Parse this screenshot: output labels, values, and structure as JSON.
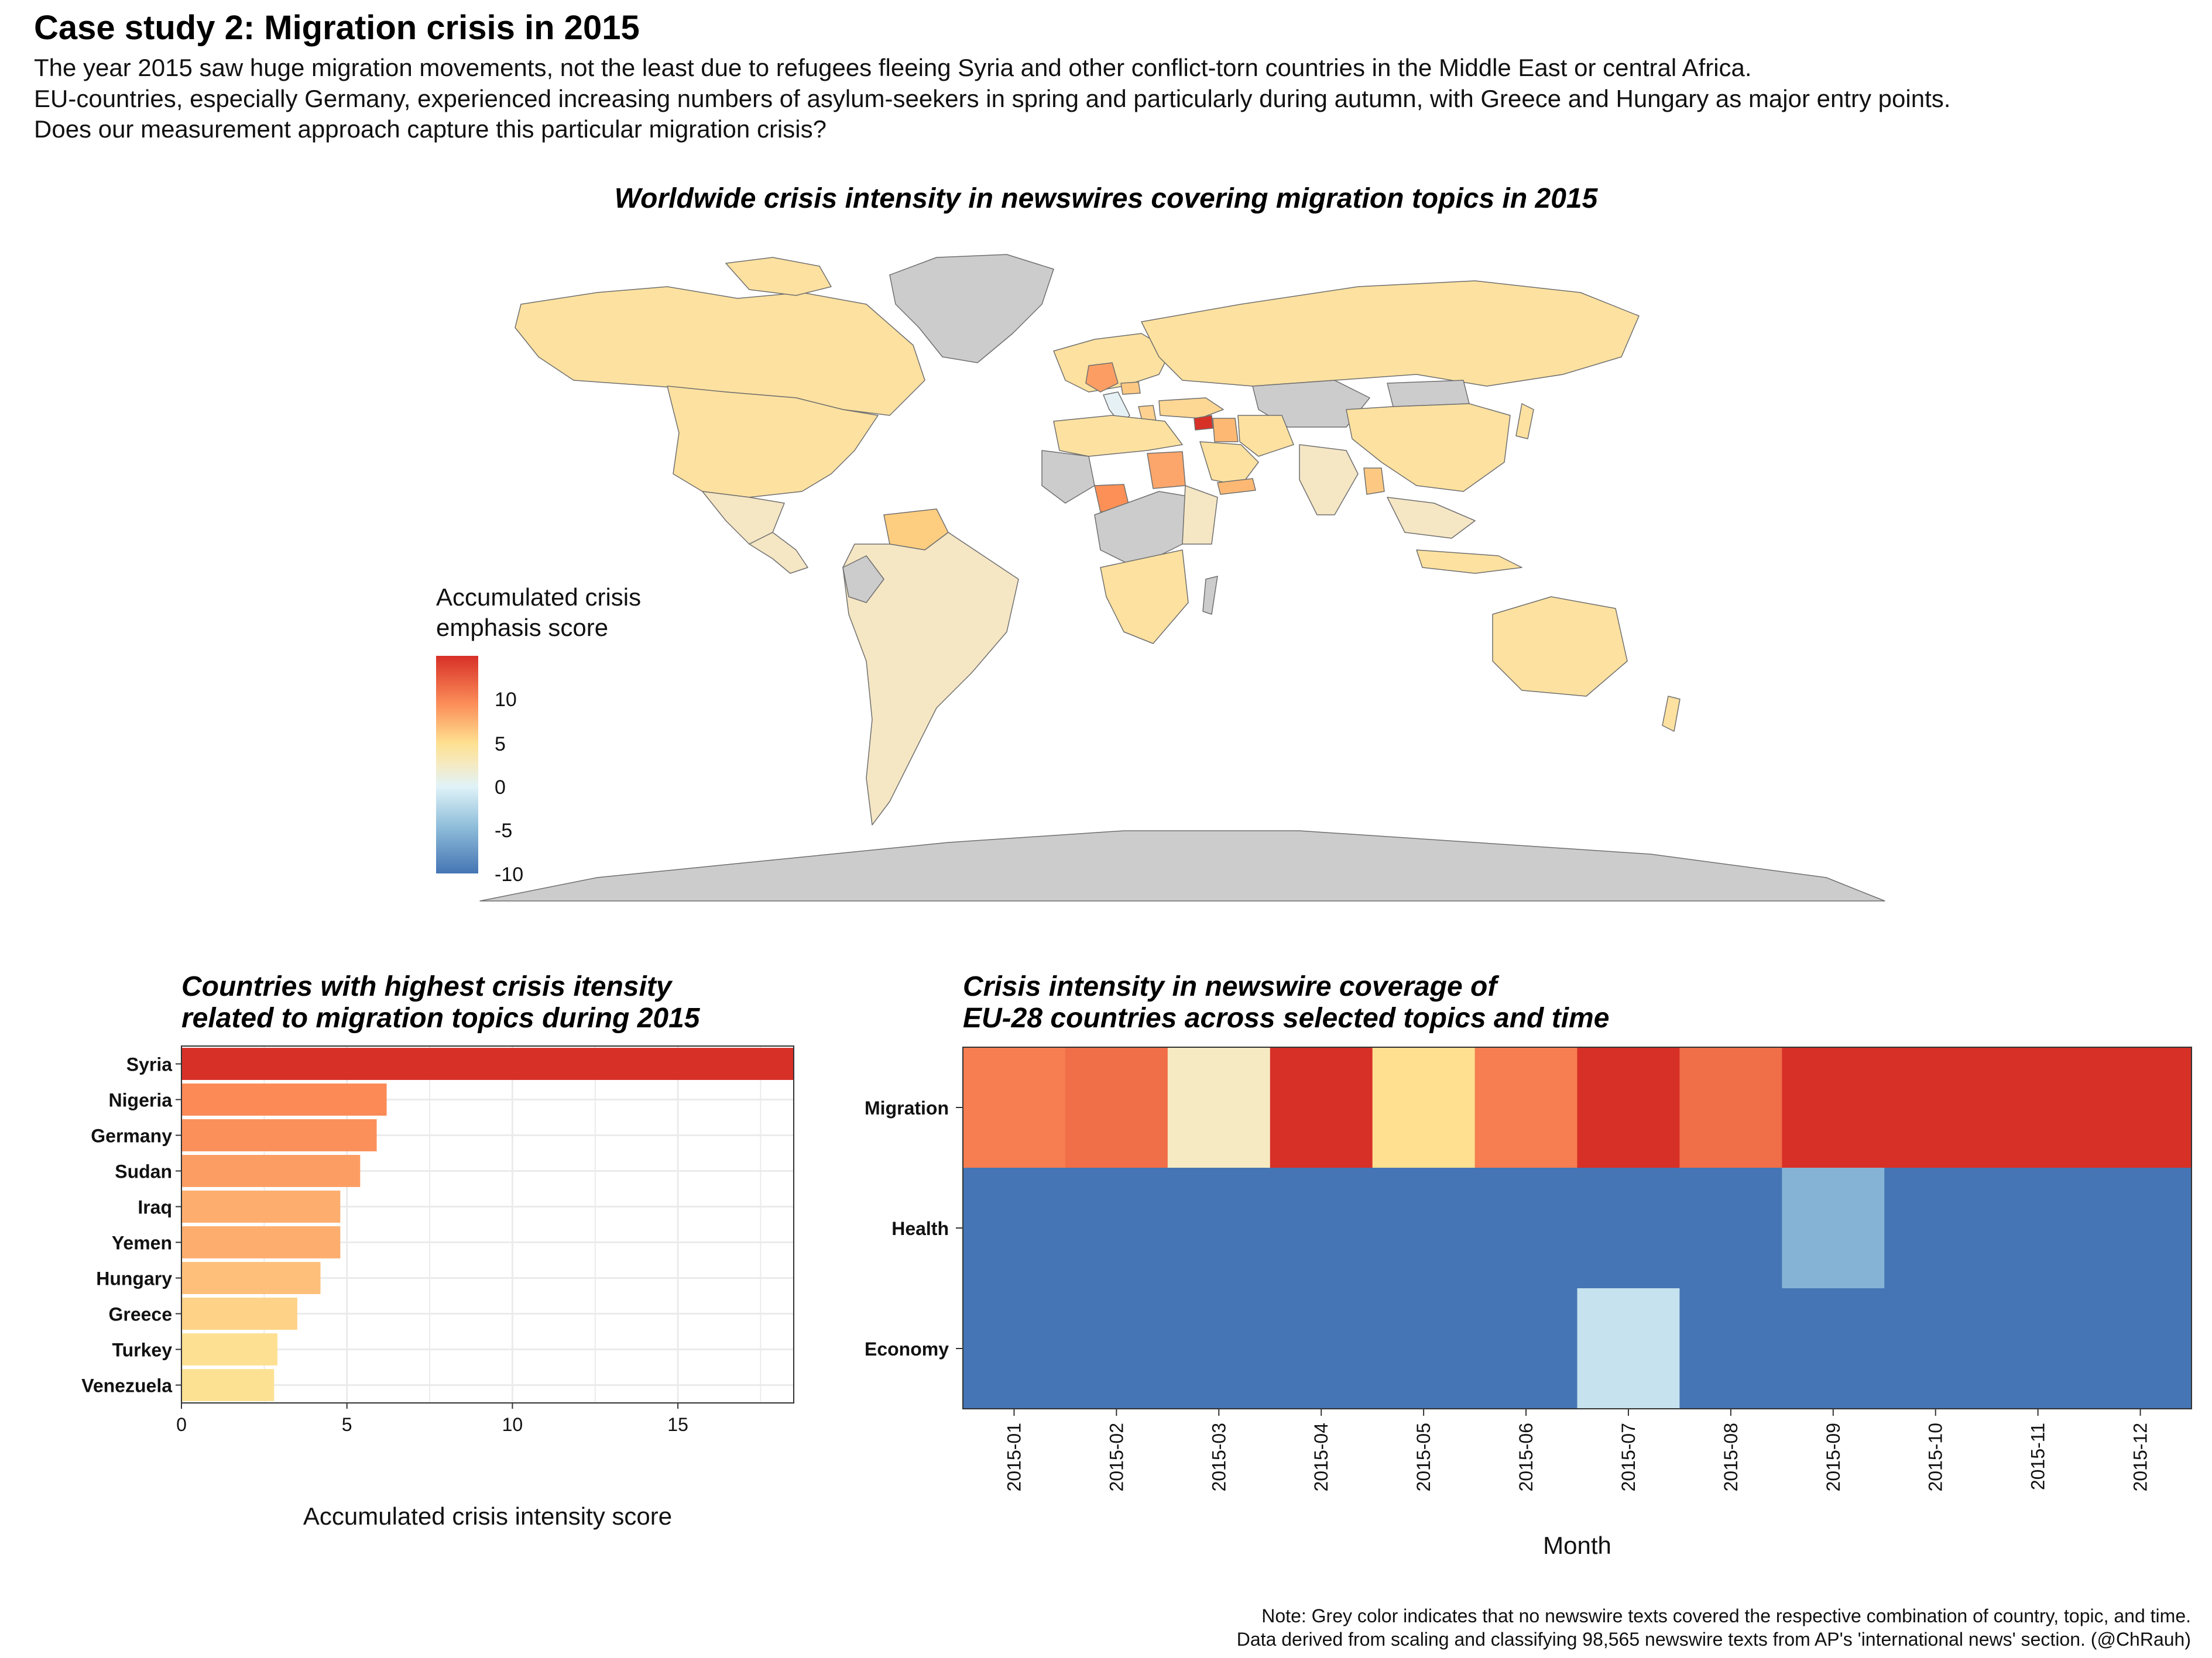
{
  "header": {
    "title": "Case study 2: Migration crisis in 2015",
    "intro_1": "The year 2015 saw huge migration movements, not the least due to refugees fleeing Syria and other conflict-torn countries in the Middle East or central Africa.",
    "intro_2": "EU-countries, especially Germany, experienced increasing numbers of asylum-seekers in spring and particularly during autumn, with Greece and Hungary as major entry points.",
    "intro_3": "Does our measurement approach capture this particular migration crisis?"
  },
  "colors": {
    "no_data": "#cccccc",
    "strong_positive": "#d73027",
    "positive": "#fc8d59",
    "mild_positive": "#fee090",
    "neutral": "#f5eac2",
    "mild_negative": "#e0f3f8",
    "negative": "#91bfdb",
    "strong_negative": "#4575b4"
  },
  "chart_data": [
    {
      "type": "map",
      "title": "Worldwide crisis intensity in newswires covering migration topics in 2015",
      "legend": {
        "title_line1": "Accumulated crisis",
        "title_line2": "emphasis score",
        "ticks": [
          "10",
          "5",
          "0",
          "-5",
          "-10"
        ],
        "range": [
          -12,
          12
        ],
        "placement": "left"
      },
      "highlighted_regions": [
        {
          "name": "Syria",
          "value": 18.5
        },
        {
          "name": "Nigeria",
          "value": 6.2
        },
        {
          "name": "Germany",
          "value": 5.9
        },
        {
          "name": "Sudan",
          "value": 5.4
        },
        {
          "name": "Iraq",
          "value": 4.8
        },
        {
          "name": "Yemen",
          "value": 4.8
        },
        {
          "name": "Hungary",
          "value": 4.2
        },
        {
          "name": "Greece",
          "value": 3.5
        },
        {
          "name": "Turkey",
          "value": 2.9
        },
        {
          "name": "Venezuela",
          "value": 2.8
        }
      ]
    },
    {
      "type": "bar",
      "orientation": "horizontal",
      "title_line1": "Countries with highest crisis itensity",
      "title_line2": "related to migration topics during 2015",
      "categories": [
        "Syria",
        "Nigeria",
        "Germany",
        "Sudan",
        "Iraq",
        "Yemen",
        "Hungary",
        "Greece",
        "Turkey",
        "Venezuela"
      ],
      "values": [
        18.5,
        6.2,
        5.9,
        5.4,
        4.8,
        4.8,
        4.2,
        3.5,
        2.9,
        2.8
      ],
      "xlabel": "Accumulated crisis intensity score",
      "xticks": [
        "0",
        "5",
        "10",
        "15"
      ],
      "xlim": [
        0,
        18.5
      ],
      "grid": true
    },
    {
      "type": "heatmap",
      "title_line1": "Crisis intensity in newswire coverage of",
      "title_line2": "EU-28 countries across selected topics and time",
      "x": [
        "2015-01",
        "2015-02",
        "2015-03",
        "2015-04",
        "2015-05",
        "2015-06",
        "2015-07",
        "2015-08",
        "2015-09",
        "2015-10",
        "2015-11",
        "2015-12"
      ],
      "y": [
        "Migration",
        "Health",
        "Economy"
      ],
      "values": [
        [
          7,
          8,
          0,
          12,
          3,
          7,
          12,
          8,
          12,
          12,
          12,
          12
        ],
        [
          -12,
          -12,
          -12,
          -12,
          -12,
          -12,
          -12,
          -12,
          -7,
          -12,
          -12,
          -12
        ],
        [
          -12,
          -12,
          -12,
          -12,
          -12,
          -12,
          -4,
          -12,
          -12,
          -12,
          -12,
          -12
        ]
      ],
      "xlabel": "Month",
      "range": [
        -12,
        12
      ]
    }
  ],
  "note": {
    "line1": "Note: Grey color indicates that no newswire texts covered the respective combination of country, topic, and time.",
    "line2": "Data derived from scaling and classifying 98,565 newswire texts from AP's 'international news' section. (@ChRauh)"
  }
}
